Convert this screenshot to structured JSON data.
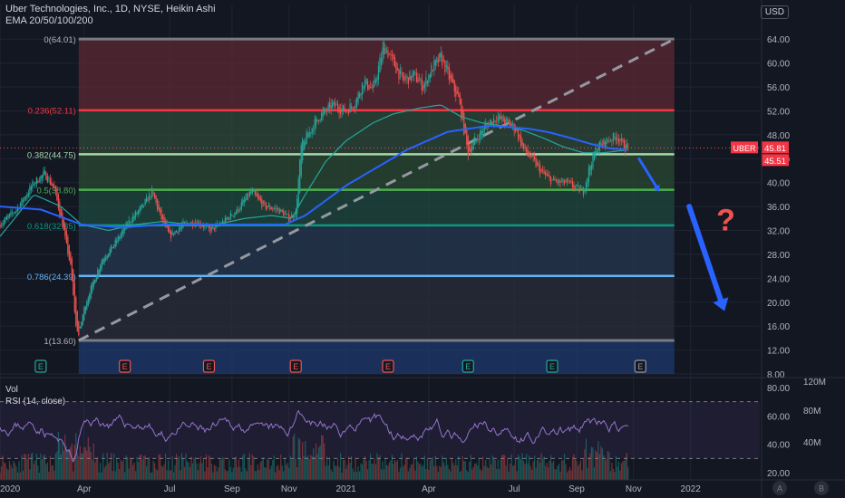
{
  "header": {
    "title": "Uber Technologies, Inc., 1D, NYSE, Heikin Ashi",
    "indicator": "EMA 20/50/100/200",
    "currency": "USD"
  },
  "colors": {
    "background": "#131722",
    "grid": "#1f2433",
    "axis_text": "#b2b5be",
    "ema_fast": "#26a69a",
    "ema_slow": "#2962ff",
    "candle_up": "#26a69a",
    "candle_down": "#ef5350",
    "rsi_line": "#9575cd",
    "arrow": "#2962ff",
    "question": "#ef5350"
  },
  "chart_data": [
    {
      "type": "candlestick",
      "title": "Uber Technologies, Inc., 1D, NYSE, Heikin Ashi",
      "ylim": [
        8,
        66
      ],
      "yticks": [
        "64.00",
        "60.00",
        "56.00",
        "52.00",
        "48.00",
        "44.00",
        "40.00",
        "36.00",
        "32.00",
        "28.00",
        "24.00",
        "20.00",
        "16.00",
        "12.00",
        "8.00"
      ],
      "ytick_values": [
        64,
        60,
        56,
        52,
        48,
        44,
        40,
        36,
        32,
        28,
        24,
        20,
        16,
        12,
        8
      ],
      "xticks": [
        "2020",
        "Apr",
        "Jul",
        "Sep",
        "Nov",
        "2021",
        "Apr",
        "Jul",
        "Sep",
        "Nov",
        "2022"
      ],
      "xtick_index": [
        0,
        62,
        125,
        171,
        213,
        255,
        316,
        379,
        425,
        467,
        509
      ],
      "last_price": "45.81",
      "last_price_value": 45.81,
      "ema_price": "45.51",
      "ema_price_value": 45.51,
      "symbol_badge": "UBER",
      "fib_levels": [
        {
          "label": "0(64.01)",
          "value": 64.01,
          "color": "#787b86"
        },
        {
          "label": "0.236(52.11)",
          "value": 52.11,
          "color": "#f23645"
        },
        {
          "label": "0.382(44.75)",
          "value": 44.75,
          "color": "#a5d6a7"
        },
        {
          "label": "0.5(38.80)",
          "value": 38.8,
          "color": "#4caf50"
        },
        {
          "label": "0.618(32.85)",
          "value": 32.85,
          "color": "#089981"
        },
        {
          "label": "0.786(24.39)",
          "value": 24.39,
          "color": "#64b5f6"
        },
        {
          "label": "1(13.60)",
          "value": 13.6,
          "color": "#787b86"
        }
      ],
      "fib_zone_colors": [
        "#5c2a33",
        "#2e4a3a",
        "#2a4a33",
        "#1f4a3e",
        "#25384f",
        "#2a2e39",
        "#1e3a6e"
      ],
      "fib_start_index": 58,
      "fib_end_index": 497,
      "earnings_markers": [
        {
          "label": "E",
          "index": 30,
          "kind": "good"
        },
        {
          "label": "E",
          "index": 92,
          "kind": "bad"
        },
        {
          "label": "E",
          "index": 154,
          "kind": "bad"
        },
        {
          "label": "E",
          "index": 218,
          "kind": "bad"
        },
        {
          "label": "E",
          "index": 286,
          "kind": "bad"
        },
        {
          "label": "E",
          "index": 345,
          "kind": "good"
        },
        {
          "label": "E",
          "index": 407,
          "kind": "good"
        },
        {
          "label": "E",
          "index": 472,
          "kind": "neutral"
        }
      ],
      "price_anchors": [
        [
          0,
          33
        ],
        [
          12,
          35.5
        ],
        [
          25,
          40
        ],
        [
          33,
          41.5
        ],
        [
          40,
          39
        ],
        [
          46,
          33
        ],
        [
          52,
          26
        ],
        [
          56,
          16
        ],
        [
          58,
          14.5
        ],
        [
          62,
          19
        ],
        [
          68,
          23
        ],
        [
          75,
          27
        ],
        [
          85,
          30
        ],
        [
          95,
          33.5
        ],
        [
          105,
          36
        ],
        [
          112,
          38.5
        ],
        [
          118,
          34.5
        ],
        [
          125,
          31
        ],
        [
          135,
          33
        ],
        [
          145,
          33.5
        ],
        [
          155,
          32
        ],
        [
          165,
          33.5
        ],
        [
          175,
          35.5
        ],
        [
          185,
          38.5
        ],
        [
          195,
          36
        ],
        [
          205,
          35.5
        ],
        [
          213,
          34
        ],
        [
          218,
          35
        ],
        [
          222,
          46
        ],
        [
          228,
          48.5
        ],
        [
          235,
          51
        ],
        [
          245,
          53
        ],
        [
          255,
          52
        ],
        [
          262,
          53.5
        ],
        [
          268,
          57
        ],
        [
          275,
          55.5
        ],
        [
          283,
          63
        ],
        [
          290,
          60
        ],
        [
          297,
          57
        ],
        [
          305,
          58
        ],
        [
          312,
          56
        ],
        [
          318,
          59
        ],
        [
          325,
          61
        ],
        [
          332,
          57
        ],
        [
          338,
          54
        ],
        [
          345,
          45
        ],
        [
          350,
          47
        ],
        [
          358,
          49.5
        ],
        [
          366,
          51
        ],
        [
          374,
          50
        ],
        [
          380,
          49
        ],
        [
          386,
          45.5
        ],
        [
          392,
          44
        ],
        [
          398,
          42
        ],
        [
          405,
          40.5
        ],
        [
          412,
          40
        ],
        [
          418,
          40
        ],
        [
          425,
          39
        ],
        [
          430,
          38.5
        ],
        [
          435,
          43
        ],
        [
          440,
          46
        ],
        [
          447,
          47
        ],
        [
          455,
          47.8
        ],
        [
          460,
          46
        ],
        [
          463,
          45.81
        ]
      ],
      "ema_fast_anchors": [
        [
          0,
          31
        ],
        [
          25,
          38
        ],
        [
          45,
          36
        ],
        [
          60,
          33
        ],
        [
          80,
          32
        ],
        [
          100,
          33
        ],
        [
          120,
          33.5
        ],
        [
          140,
          33
        ],
        [
          160,
          33
        ],
        [
          180,
          34
        ],
        [
          200,
          34.5
        ],
        [
          215,
          34
        ],
        [
          225,
          38
        ],
        [
          240,
          43.5
        ],
        [
          255,
          47
        ],
        [
          275,
          50
        ],
        [
          290,
          51.5
        ],
        [
          310,
          52.5
        ],
        [
          325,
          53
        ],
        [
          340,
          51
        ],
        [
          355,
          50
        ],
        [
          370,
          49.5
        ],
        [
          385,
          48.8
        ],
        [
          400,
          47.5
        ],
        [
          415,
          46
        ],
        [
          430,
          45
        ],
        [
          445,
          45
        ],
        [
          463,
          45.5
        ]
      ],
      "ema_slow_anchors": [
        [
          0,
          36
        ],
        [
          30,
          35.5
        ],
        [
          60,
          33
        ],
        [
          90,
          32.5
        ],
        [
          120,
          33
        ],
        [
          150,
          33
        ],
        [
          180,
          33
        ],
        [
          210,
          33
        ],
        [
          225,
          34.5
        ],
        [
          240,
          37
        ],
        [
          255,
          39.5
        ],
        [
          270,
          41.5
        ],
        [
          285,
          43.5
        ],
        [
          300,
          45.5
        ],
        [
          315,
          47
        ],
        [
          330,
          48.5
        ],
        [
          345,
          49
        ],
        [
          360,
          49.5
        ],
        [
          375,
          49.3
        ],
        [
          390,
          49
        ],
        [
          405,
          48.4
        ],
        [
          420,
          47.5
        ],
        [
          435,
          46.5
        ],
        [
          450,
          45.7
        ],
        [
          463,
          45.51
        ]
      ],
      "trendline": {
        "from": [
          58,
          13.6
        ],
        "to": [
          497,
          64.01
        ]
      },
      "annotations": {
        "question_mark": "?",
        "small_arrow": {
          "from": [
            471,
            44
          ],
          "to": [
            486,
            38.5
          ]
        },
        "big_arrow": {
          "from": [
            508,
            36
          ],
          "to": [
            534,
            18.5
          ]
        },
        "question_pos": [
          528,
          32
        ]
      }
    },
    {
      "type": "line",
      "title": "RSI (14, close)",
      "ylim": [
        15,
        85
      ],
      "yticks": [
        "80.00",
        "60.00",
        "40.00",
        "20.00"
      ],
      "ytick_values": [
        80,
        60,
        40,
        20
      ],
      "bands": [
        30,
        70
      ],
      "series_name": "RSI (14, close)"
    },
    {
      "type": "bar",
      "title": "Vol",
      "yticks": [
        "120M",
        "80M",
        "40M"
      ],
      "ytick_values": [
        120,
        80,
        40
      ]
    }
  ],
  "bottom_buttons": [
    "A",
    "B"
  ]
}
